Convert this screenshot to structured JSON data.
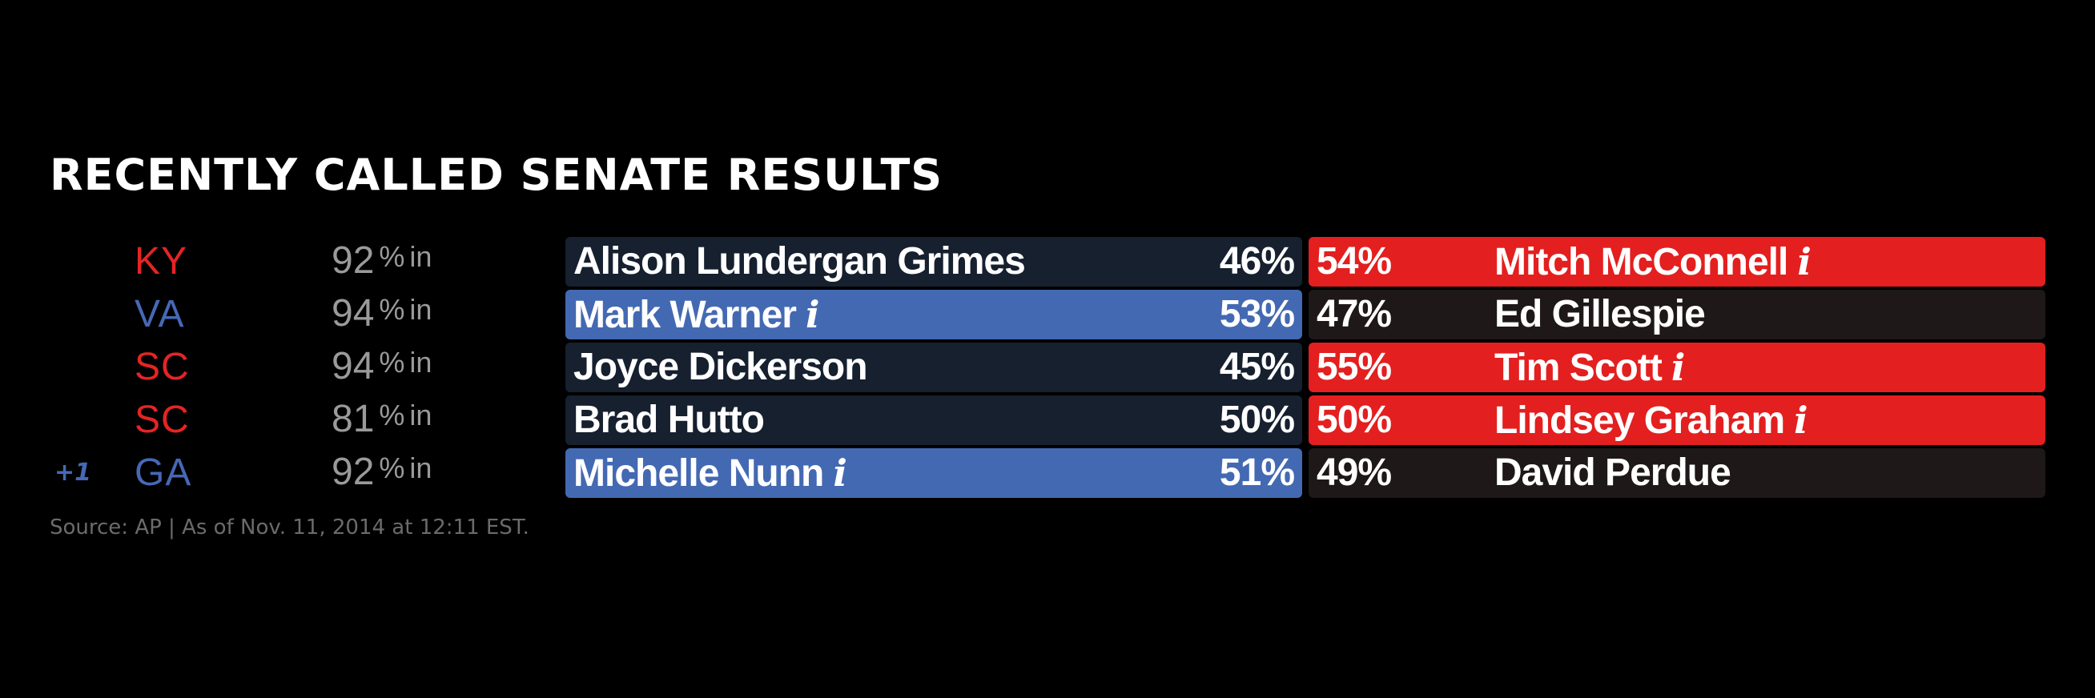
{
  "title": "RECENTLY CALLED SENATE RESULTS",
  "colors": {
    "dem_win": "#4469b3",
    "rep_win": "#e31f1f",
    "dem_loss": "#16202f",
    "rep_loss": "#1e1818",
    "dem_text": "#4668b6",
    "rep_text": "#e52424"
  },
  "reporting_pct_symbol": "%",
  "reporting_suffix": "in",
  "races": [
    {
      "gain": "",
      "state": "KY",
      "state_party": "rep",
      "reporting": "92",
      "dem": {
        "name": "Alison Lundergan Grimes",
        "pct": "46%",
        "winner": false
      },
      "rep": {
        "name": "Mitch McConnell",
        "pct": "54%",
        "winner": true
      }
    },
    {
      "gain": "",
      "state": "VA",
      "state_party": "dem",
      "reporting": "94",
      "dem": {
        "name": "Mark Warner",
        "pct": "53%",
        "winner": true
      },
      "rep": {
        "name": "Ed Gillespie",
        "pct": "47%",
        "winner": false
      }
    },
    {
      "gain": "",
      "state": "SC",
      "state_party": "rep",
      "reporting": "94",
      "dem": {
        "name": "Joyce Dickerson",
        "pct": "45%",
        "winner": false
      },
      "rep": {
        "name": "Tim Scott",
        "pct": "55%",
        "winner": true
      }
    },
    {
      "gain": "",
      "state": "SC",
      "state_party": "rep",
      "reporting": "81",
      "dem": {
        "name": "Brad Hutto",
        "pct": "50%",
        "winner": false
      },
      "rep": {
        "name": "Lindsey Graham",
        "pct": "50%",
        "winner": true
      }
    },
    {
      "gain": "+1",
      "state": "GA",
      "state_party": "dem",
      "reporting": "92",
      "dem": {
        "name": "Michelle Nunn",
        "pct": "51%",
        "winner": true
      },
      "rep": {
        "name": "David Perdue",
        "pct": "49%",
        "winner": false
      }
    }
  ],
  "source": "Source: AP  |  As of Nov. 11, 2014 at 12:11 EST."
}
